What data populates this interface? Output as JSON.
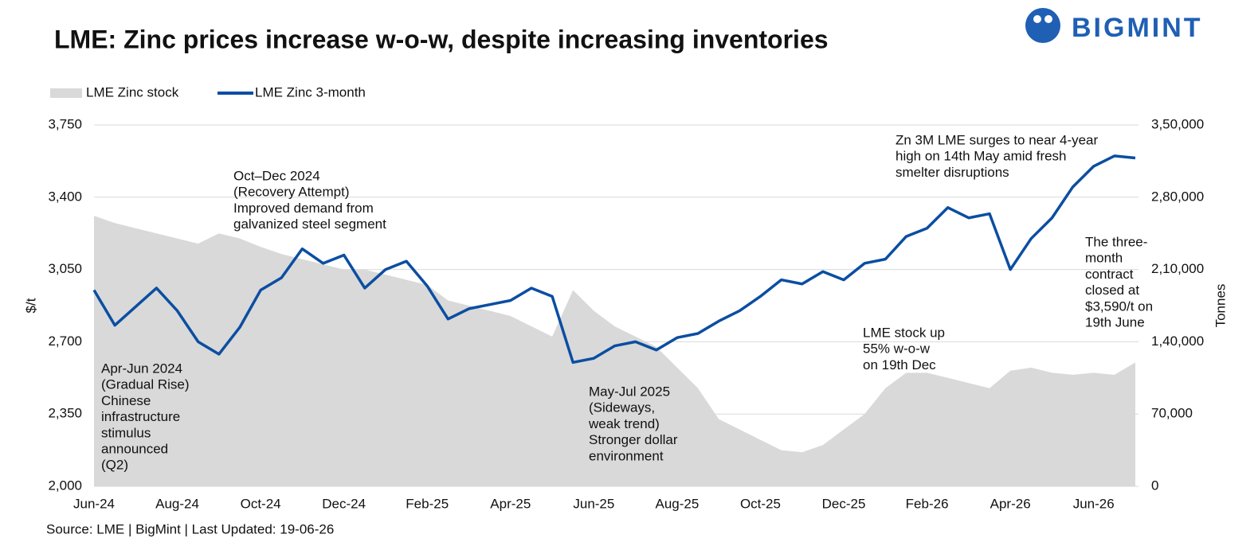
{
  "chart_data": {
    "type": "line",
    "title": "LME: Zinc prices increase w-o-w, despite increasing inventories",
    "logo": "BIGMINT",
    "source": "Source: LME | BigMint | Last Updated: 19-06-26",
    "y_label": "$/t",
    "y2_label": "Tonnes",
    "categories": [
      "Jun-24",
      null,
      null,
      null,
      "Aug-24",
      null,
      null,
      null,
      "Oct-24",
      null,
      null,
      null,
      "Dec-24",
      null,
      null,
      null,
      "Feb-25",
      null,
      null,
      null,
      "Apr-25",
      null,
      null,
      null,
      "Jun-25",
      null,
      null,
      null,
      "Aug-25",
      null,
      null,
      null,
      "Oct-25",
      null,
      null,
      null,
      "Dec-25",
      null,
      null,
      null,
      "Feb-26",
      null,
      null,
      null,
      "Apr-26",
      null,
      null,
      null,
      "Jun-26",
      null,
      null
    ],
    "series": [
      {
        "name": "LME Zinc stock",
        "color": "#d9d9d9",
        "axis": "y2",
        "kind": "area",
        "values": [
          262000,
          255000,
          250000,
          245000,
          240000,
          235000,
          245000,
          240000,
          232000,
          225000,
          220000,
          215000,
          210000,
          210000,
          205000,
          200000,
          195000,
          180000,
          175000,
          170000,
          165000,
          155000,
          145000,
          190000,
          170000,
          155000,
          145000,
          135000,
          115000,
          95000,
          65000,
          55000,
          45000,
          35000,
          33000,
          40000,
          55000,
          70000,
          95000,
          110000,
          110000,
          105000,
          100000,
          95000,
          112000,
          115000,
          110000,
          108000,
          110000,
          108000,
          120000
        ]
      },
      {
        "name": "LME Zinc 3-month",
        "color": "#0b4ea2",
        "kind": "line",
        "values": [
          2950,
          2780,
          2870,
          2960,
          2850,
          2700,
          2640,
          2770,
          2950,
          3010,
          3150,
          3080,
          3120,
          2960,
          3050,
          3090,
          2970,
          2810,
          2860,
          2880,
          2900,
          2960,
          2920,
          2600,
          2620,
          2680,
          2700,
          2660,
          2720,
          2740,
          2800,
          2850,
          2920,
          3000,
          2980,
          3040,
          3000,
          3080,
          3100,
          3210,
          3250,
          3350,
          3300,
          3320,
          3050,
          3200,
          3300,
          3450,
          3550,
          3600,
          3590
        ]
      }
    ],
    "ylim": [
      2000,
      3750
    ],
    "yticks": [
      {
        "value": 2000,
        "label": "2,000"
      },
      {
        "value": 2350,
        "label": "2,350"
      },
      {
        "value": 2700,
        "label": "2,700"
      },
      {
        "value": 3050,
        "label": "3,050"
      },
      {
        "value": 3400,
        "label": "3,400"
      },
      {
        "value": 3750,
        "label": "3,750"
      }
    ],
    "y2lim": [
      0,
      350000
    ],
    "y2ticks": [
      0,
      {
        "value": 70000,
        "label": "70,000"
      },
      {
        "value": 140000,
        "label": "1,40,000"
      },
      {
        "value": 210000,
        "label": "2,10,000"
      },
      {
        "value": 280000,
        "label": "2,80,000"
      },
      {
        "value": 350000,
        "label": "3,50,000"
      }
    ],
    "grid": true,
    "legend": "top-left",
    "annotations": [
      {
        "lines": [
          "Oct–Dec 2024",
          "(Recovery Attempt)",
          "Improved demand from",
          "galvanized steel segment"
        ]
      },
      {
        "lines": [
          "Apr-Jun 2024",
          "(Gradual Rise)",
          "Chinese",
          "infrastructure",
          "stimulus",
          "announced",
          "(Q2)"
        ]
      },
      {
        "lines": [
          "May-Jul 2025",
          "(Sideways,",
          "weak trend)",
          "Stronger dollar",
          "environment"
        ]
      },
      {
        "lines": [
          "LME stock up",
          "55% w-o-w",
          "on 19th Dec"
        ]
      },
      {
        "lines": [
          "Zn 3M LME surges to near 4-year",
          "high on 14th May amid fresh",
          "smelter disruptions"
        ]
      },
      {
        "lines": [
          "The three-",
          "month",
          "contract",
          "closed at",
          "$3,590/t on",
          "19th June"
        ]
      }
    ]
  }
}
